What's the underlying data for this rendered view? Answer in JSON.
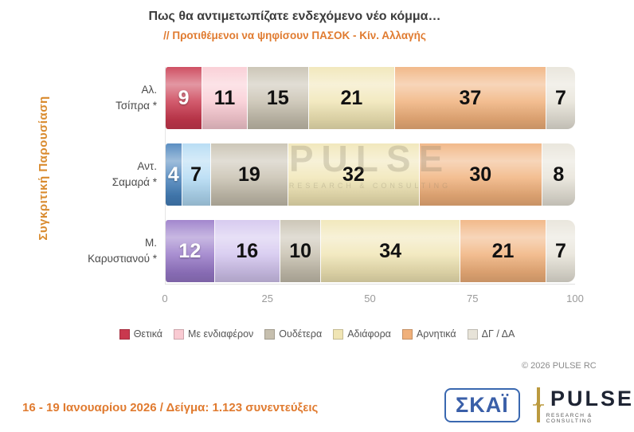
{
  "header": {
    "title": "Πως θα αντιμετωπίζατε ενδεχόμενο νέο κόμμα…",
    "subtitle": "// Προτιθέμενοι να ψηφίσουν ΠΑΣΟΚ - Κίν. Αλλαγής"
  },
  "side_label": "Συγκριτική  Παρουσίαση",
  "chart_data": {
    "type": "bar",
    "orientation": "horizontal",
    "stacked": true,
    "xlim": [
      0,
      100
    ],
    "x_ticks": [
      0,
      25,
      50,
      75,
      100
    ],
    "legend_position": "bottom",
    "rows": [
      {
        "label_lines": [
          "Αλ.",
          "Τσίπρα *"
        ],
        "values": [
          9,
          11,
          15,
          21,
          37,
          7
        ]
      },
      {
        "label_lines": [
          "Αντ.",
          "Σαμαρά *"
        ],
        "values": [
          4,
          7,
          19,
          32,
          30,
          8
        ]
      },
      {
        "label_lines": [
          "Μ.",
          "Καρυστιανού *"
        ],
        "values": [
          12,
          16,
          10,
          34,
          21,
          7
        ]
      }
    ],
    "series": [
      {
        "name": "Θετικά",
        "colors": [
          "#c9384e",
          "#4580ba",
          "#9677c7"
        ],
        "legend_color": "#c9384e",
        "text_color": "#ffffff"
      },
      {
        "name": "Με ενδιαφέρον",
        "colors": [
          "#f9cad2",
          "#b0d9f3",
          "#d2c4ee"
        ],
        "legend_color": "#f9cad2",
        "text_color": "#111111"
      },
      {
        "name": "Ουδέτερα",
        "colors": "#c6bfae",
        "legend_color": "#c6bfae",
        "text_color": "#111111"
      },
      {
        "name": "Αδιάφορα",
        "colors": "#f0e5b4",
        "legend_color": "#f0e5b4",
        "text_color": "#111111"
      },
      {
        "name": "Αρνητικά",
        "colors": "#f0b07a",
        "legend_color": "#f0b07a",
        "text_color": "#111111"
      },
      {
        "name": "ΔΓ / ΔΑ",
        "colors": "#e7e3d8",
        "legend_color": "#e7e3d8",
        "text_color": "#111111"
      }
    ]
  },
  "watermark": {
    "line1": "PULSE",
    "line2": "RESEARCH & CONSULTING"
  },
  "copyright": "© 2026 PULSE RC",
  "footer": {
    "survey_info": "16 - 19 Ιανουαρίου 2026  /  Δείγμα:  1.123 συνεντεύξεις",
    "skai_logo": "ΣΚΑΪ",
    "pulse_logo": "PULSE",
    "pulse_logo_sub": "RESEARCH & CONSULTING"
  }
}
